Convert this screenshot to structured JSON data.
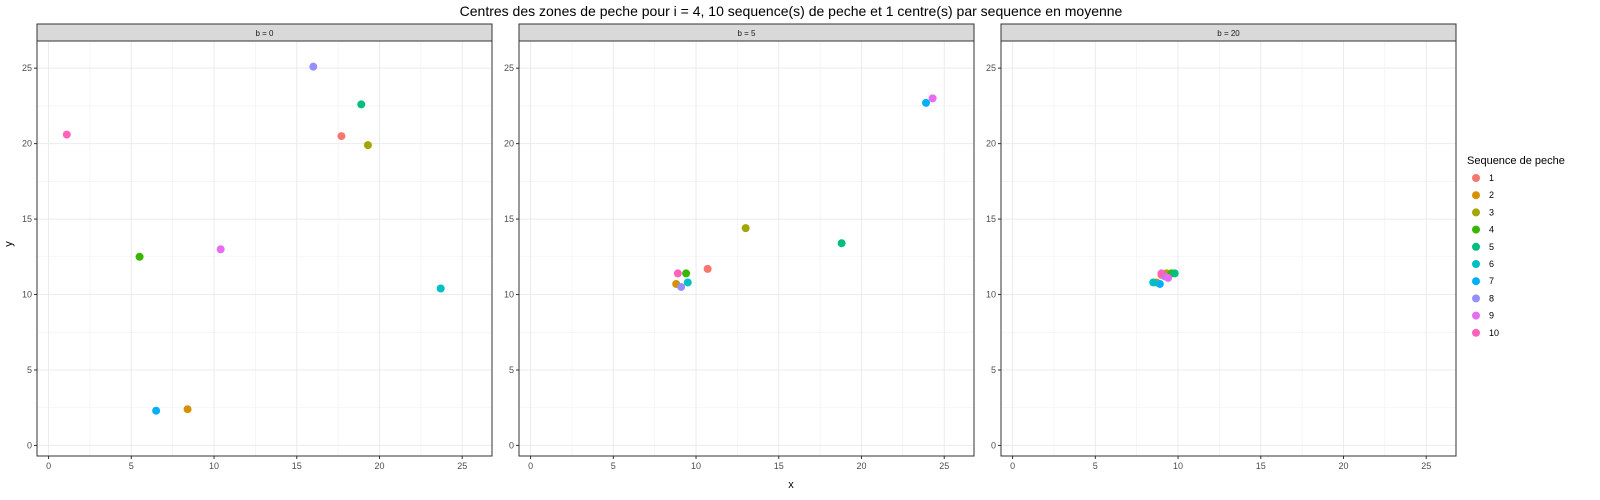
{
  "chart_data": {
    "type": "scatter",
    "title": "Centres des zones de peche pour i = 4, 10 sequence(s) de peche et 1 centre(s) par sequence en moyenne",
    "xlabel": "x",
    "ylabel": "y",
    "xlim": [
      -0.7,
      26.8
    ],
    "ylim": [
      -0.7,
      26.8
    ],
    "xticks": [
      0,
      5,
      10,
      15,
      20,
      25
    ],
    "yticks": [
      0,
      5,
      10,
      15,
      20,
      25
    ],
    "xtick_labels": [
      "0",
      "5",
      "10",
      "15",
      "20",
      "25"
    ],
    "ytick_labels": [
      "0",
      "5",
      "10",
      "15",
      "20",
      "25"
    ],
    "grid": true,
    "legend": {
      "title": "Sequence de peche",
      "position": "right",
      "entries": [
        {
          "label": "1",
          "color": "#F8766D"
        },
        {
          "label": "2",
          "color": "#D89000"
        },
        {
          "label": "3",
          "color": "#A3A500"
        },
        {
          "label": "4",
          "color": "#39B600"
        },
        {
          "label": "5",
          "color": "#00BF7D"
        },
        {
          "label": "6",
          "color": "#00BFC4"
        },
        {
          "label": "7",
          "color": "#00B0F6"
        },
        {
          "label": "8",
          "color": "#9590FF"
        },
        {
          "label": "9",
          "color": "#E76BF3"
        },
        {
          "label": "10",
          "color": "#FF62BC"
        }
      ]
    },
    "panels": [
      {
        "strip": "b = 0",
        "points": [
          {
            "series": "1",
            "x": 17.7,
            "y": 20.5
          },
          {
            "series": "2",
            "x": 8.4,
            "y": 2.4
          },
          {
            "series": "3",
            "x": 19.3,
            "y": 19.9
          },
          {
            "series": "4",
            "x": 5.5,
            "y": 12.5
          },
          {
            "series": "5",
            "x": 18.9,
            "y": 22.6
          },
          {
            "series": "6",
            "x": 23.7,
            "y": 10.4
          },
          {
            "series": "7",
            "x": 6.5,
            "y": 2.3
          },
          {
            "series": "8",
            "x": 16.0,
            "y": 25.1
          },
          {
            "series": "9",
            "x": 10.4,
            "y": 13.0
          },
          {
            "series": "10",
            "x": 1.1,
            "y": 20.6
          }
        ]
      },
      {
        "strip": "b = 5",
        "points": [
          {
            "series": "1",
            "x": 10.7,
            "y": 11.7
          },
          {
            "series": "2",
            "x": 8.8,
            "y": 10.7
          },
          {
            "series": "3",
            "x": 13.0,
            "y": 14.4
          },
          {
            "series": "4",
            "x": 9.4,
            "y": 11.4
          },
          {
            "series": "5",
            "x": 18.8,
            "y": 13.4
          },
          {
            "series": "6",
            "x": 9.5,
            "y": 10.8
          },
          {
            "series": "7",
            "x": 23.9,
            "y": 22.7
          },
          {
            "series": "8",
            "x": 9.1,
            "y": 10.5
          },
          {
            "series": "9",
            "x": 24.3,
            "y": 23.0
          },
          {
            "series": "10",
            "x": 8.9,
            "y": 11.4
          }
        ]
      },
      {
        "strip": "b = 20",
        "points": [
          {
            "series": "1",
            "x": 9.0,
            "y": 11.3
          },
          {
            "series": "2",
            "x": 8.7,
            "y": 10.8
          },
          {
            "series": "3",
            "x": 9.3,
            "y": 11.4
          },
          {
            "series": "4",
            "x": 9.6,
            "y": 11.4
          },
          {
            "series": "5",
            "x": 9.8,
            "y": 11.4
          },
          {
            "series": "6",
            "x": 8.5,
            "y": 10.8
          },
          {
            "series": "7",
            "x": 8.9,
            "y": 10.7
          },
          {
            "series": "8",
            "x": 9.2,
            "y": 11.2
          },
          {
            "series": "9",
            "x": 9.4,
            "y": 11.1
          },
          {
            "series": "10",
            "x": 9.0,
            "y": 11.4
          }
        ]
      }
    ]
  }
}
